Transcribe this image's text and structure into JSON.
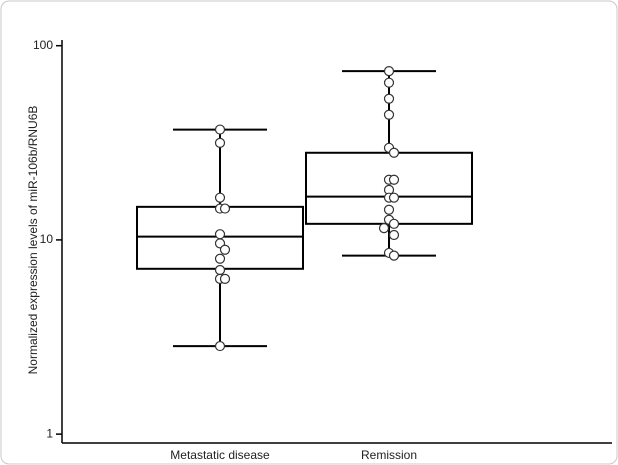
{
  "chart_data": {
    "type": "box",
    "ylabel": "Normalized expression levels of miR-106b/RNU6B",
    "categories": [
      "Metastatic disease",
      "Remission"
    ],
    "boxes": [
      {
        "min": 2.84,
        "q1": 7.1,
        "median": 10.4,
        "q3": 14.8,
        "max": 37
      },
      {
        "min": 8.3,
        "q1": 12.1,
        "median": 16.7,
        "q3": 28.1,
        "max": 74
      }
    ],
    "points": [
      [
        37,
        31.6,
        16.5,
        14.5,
        14.5,
        10.7,
        9.6,
        8.9,
        8.0,
        7.0,
        6.3,
        6.3,
        2.84
      ],
      [
        74,
        64.5,
        53.3,
        44.1,
        29.8,
        28.1,
        20.4,
        20.4,
        18.1,
        16.5,
        16.5,
        14.3,
        12.7,
        12.1,
        11.5,
        10.6,
        8.57,
        8.3
      ]
    ],
    "ylim": [
      0.9,
      107
    ],
    "yticks": [
      1,
      10,
      100
    ],
    "log_y": true,
    "color": "#000000"
  }
}
